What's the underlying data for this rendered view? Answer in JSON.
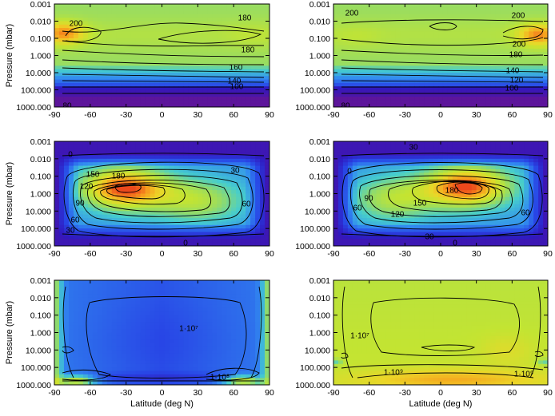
{
  "chart_data": [
    {
      "type": "heatmap",
      "panel": "row1-left",
      "xlabel": "",
      "ylabel": "Pressure (mbar)",
      "x_ticks": [
        -90,
        -60,
        -30,
        0,
        30,
        60,
        90
      ],
      "y_ticks": [
        "0.001",
        "0.010",
        "0.100",
        "1.000",
        "10.000",
        "100.000",
        "1000.000"
      ],
      "xlim": [
        -90,
        90
      ],
      "ylim": [
        0.001,
        1000
      ],
      "y_scale": "log",
      "contour_labels": [
        "200",
        "180",
        "180",
        "160",
        "140",
        "100",
        "80"
      ]
    },
    {
      "type": "heatmap",
      "panel": "row1-right",
      "xlabel": "",
      "ylabel": "",
      "x_ticks": [
        -90,
        -60,
        -30,
        0,
        30,
        60,
        90
      ],
      "y_ticks": [
        "0.001",
        "0.010",
        "0.100",
        "1.000",
        "10.000",
        "100.000",
        "1000.000"
      ],
      "xlim": [
        -90,
        90
      ],
      "ylim": [
        0.001,
        1000
      ],
      "y_scale": "log",
      "contour_labels": [
        "200",
        "200",
        "200",
        "180",
        "140",
        "120",
        "100",
        "80"
      ]
    },
    {
      "type": "heatmap",
      "panel": "row2-left",
      "xlabel": "",
      "ylabel": "Pressure (mbar)",
      "x_ticks": [
        -90,
        -60,
        -30,
        0,
        30,
        60,
        90
      ],
      "y_ticks": [
        "0.001",
        "0.010",
        "0.100",
        "1.000",
        "10.000",
        "100.000",
        "1000.000"
      ],
      "xlim": [
        -90,
        90
      ],
      "ylim": [
        0.001,
        1000
      ],
      "y_scale": "log",
      "contour_labels": [
        "0",
        "30",
        "60",
        "90",
        "120",
        "150",
        "180",
        "60",
        "30",
        "0"
      ]
    },
    {
      "type": "heatmap",
      "panel": "row2-right",
      "xlabel": "",
      "ylabel": "",
      "x_ticks": [
        -90,
        -60,
        -30,
        0,
        30,
        60,
        90
      ],
      "y_ticks": [
        "0.001",
        "0.010",
        "0.100",
        "1.000",
        "10.000",
        "100.000",
        "1000.000"
      ],
      "xlim": [
        -90,
        90
      ],
      "ylim": [
        0.001,
        1000
      ],
      "y_scale": "log",
      "contour_labels": [
        "30",
        "0",
        "60",
        "90",
        "120",
        "150",
        "180",
        "60",
        "30",
        "0"
      ]
    },
    {
      "type": "heatmap",
      "panel": "row3-left",
      "xlabel": "Latitude (deg N)",
      "ylabel": "Pressure (mbar)",
      "x_ticks": [
        -90,
        -60,
        -30,
        0,
        30,
        60,
        90
      ],
      "y_ticks": [
        "0.001",
        "0.010",
        "0.100",
        "1.000",
        "10.000",
        "100.000",
        "1000.000"
      ],
      "xlim": [
        -90,
        90
      ],
      "ylim": [
        0.001,
        1000
      ],
      "y_scale": "log",
      "contour_labels": [
        "1·10⁷",
        "1·10⁸"
      ]
    },
    {
      "type": "heatmap",
      "panel": "row3-right",
      "xlabel": "Latitude (deg N)",
      "ylabel": "",
      "x_ticks": [
        -90,
        -60,
        -30,
        0,
        30,
        60,
        90
      ],
      "y_ticks": [
        "0.001",
        "0.010",
        "0.100",
        "1.000",
        "10.000",
        "100.000",
        "1000.000"
      ],
      "xlim": [
        -90,
        90
      ],
      "ylim": [
        0.001,
        1000
      ],
      "y_scale": "log",
      "contour_labels": [
        "1·10⁷",
        "1·10⁹",
        "1·10⁹"
      ]
    }
  ]
}
